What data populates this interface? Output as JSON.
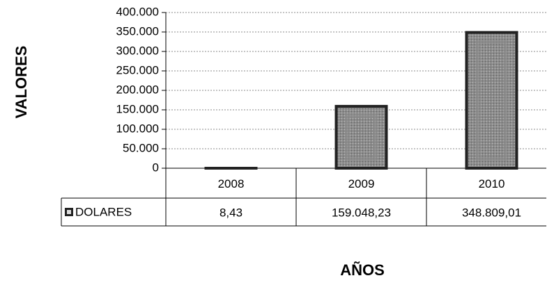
{
  "chart_data": {
    "type": "bar",
    "y_label": "VALORES",
    "x_label": "AÑOS",
    "categories": [
      "2008",
      "2009",
      "2010"
    ],
    "series": [
      {
        "name": "DOLARES",
        "color": "#8c8c8c",
        "values": [
          8.43,
          159048.23,
          348809.01
        ],
        "value_labels": [
          "8,43",
          "159.048,23",
          "348.809,01"
        ]
      }
    ],
    "ylim": [
      0,
      400000
    ],
    "yticks": [
      0,
      {
        "value": 50000,
        "label": "50.000"
      },
      {
        "value": 100000,
        "label": "100.000"
      },
      {
        "value": 150000,
        "label": "150.000"
      },
      {
        "value": 200000,
        "label": "200.000"
      },
      {
        "value": 250000,
        "label": "250.000"
      },
      {
        "value": 300000,
        "label": "300.000"
      },
      {
        "value": 350000,
        "label": "350.000"
      },
      {
        "value": 400000,
        "label": "400.000"
      }
    ],
    "grid": true
  }
}
